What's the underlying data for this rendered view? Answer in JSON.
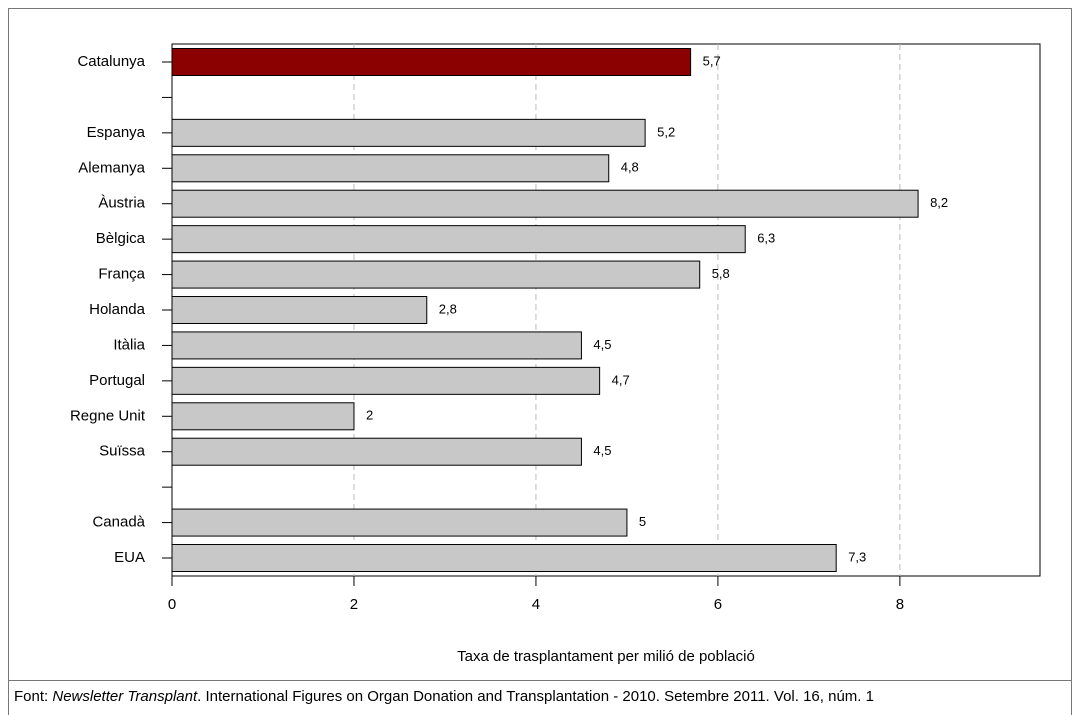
{
  "chart_data": {
    "type": "barh",
    "categories": [
      "Catalunya",
      null,
      "Espanya",
      "Alemanya",
      "Àustria",
      "Bèlgica",
      "França",
      "Holanda",
      "Itàlia",
      "Portugal",
      "Regne Unit",
      "Suïssa",
      null,
      "Canadà",
      "EUA"
    ],
    "values": [
      5.7,
      null,
      5.2,
      4.8,
      8.2,
      6.3,
      5.8,
      2.8,
      4.5,
      4.7,
      2,
      4.5,
      null,
      5,
      7.3
    ],
    "value_labels": [
      "5,7",
      null,
      "5,2",
      "4,8",
      "8,2",
      "6,3",
      "5,8",
      "2,8",
      "4,5",
      "4,7",
      "2",
      "4,5",
      null,
      "5",
      "7,3"
    ],
    "colors": [
      "#8b0000",
      null,
      "#c8c8c8",
      "#c8c8c8",
      "#c8c8c8",
      "#c8c8c8",
      "#c8c8c8",
      "#c8c8c8",
      "#c8c8c8",
      "#c8c8c8",
      "#c8c8c8",
      "#c8c8c8",
      null,
      "#c8c8c8",
      "#c8c8c8"
    ],
    "xlim": [
      0,
      9.54
    ],
    "xticks": [
      0,
      2,
      4,
      6,
      8
    ],
    "grid": true,
    "xlabel": "Taxa de trasplantament per milió de població",
    "source": {
      "prefix": "Font:",
      "title": "Newsletter Transplant",
      "text": ". International Figures on Organ Donation and Transplantation - 2010. Setembre 2011. Vol. 16, núm. 1"
    }
  }
}
